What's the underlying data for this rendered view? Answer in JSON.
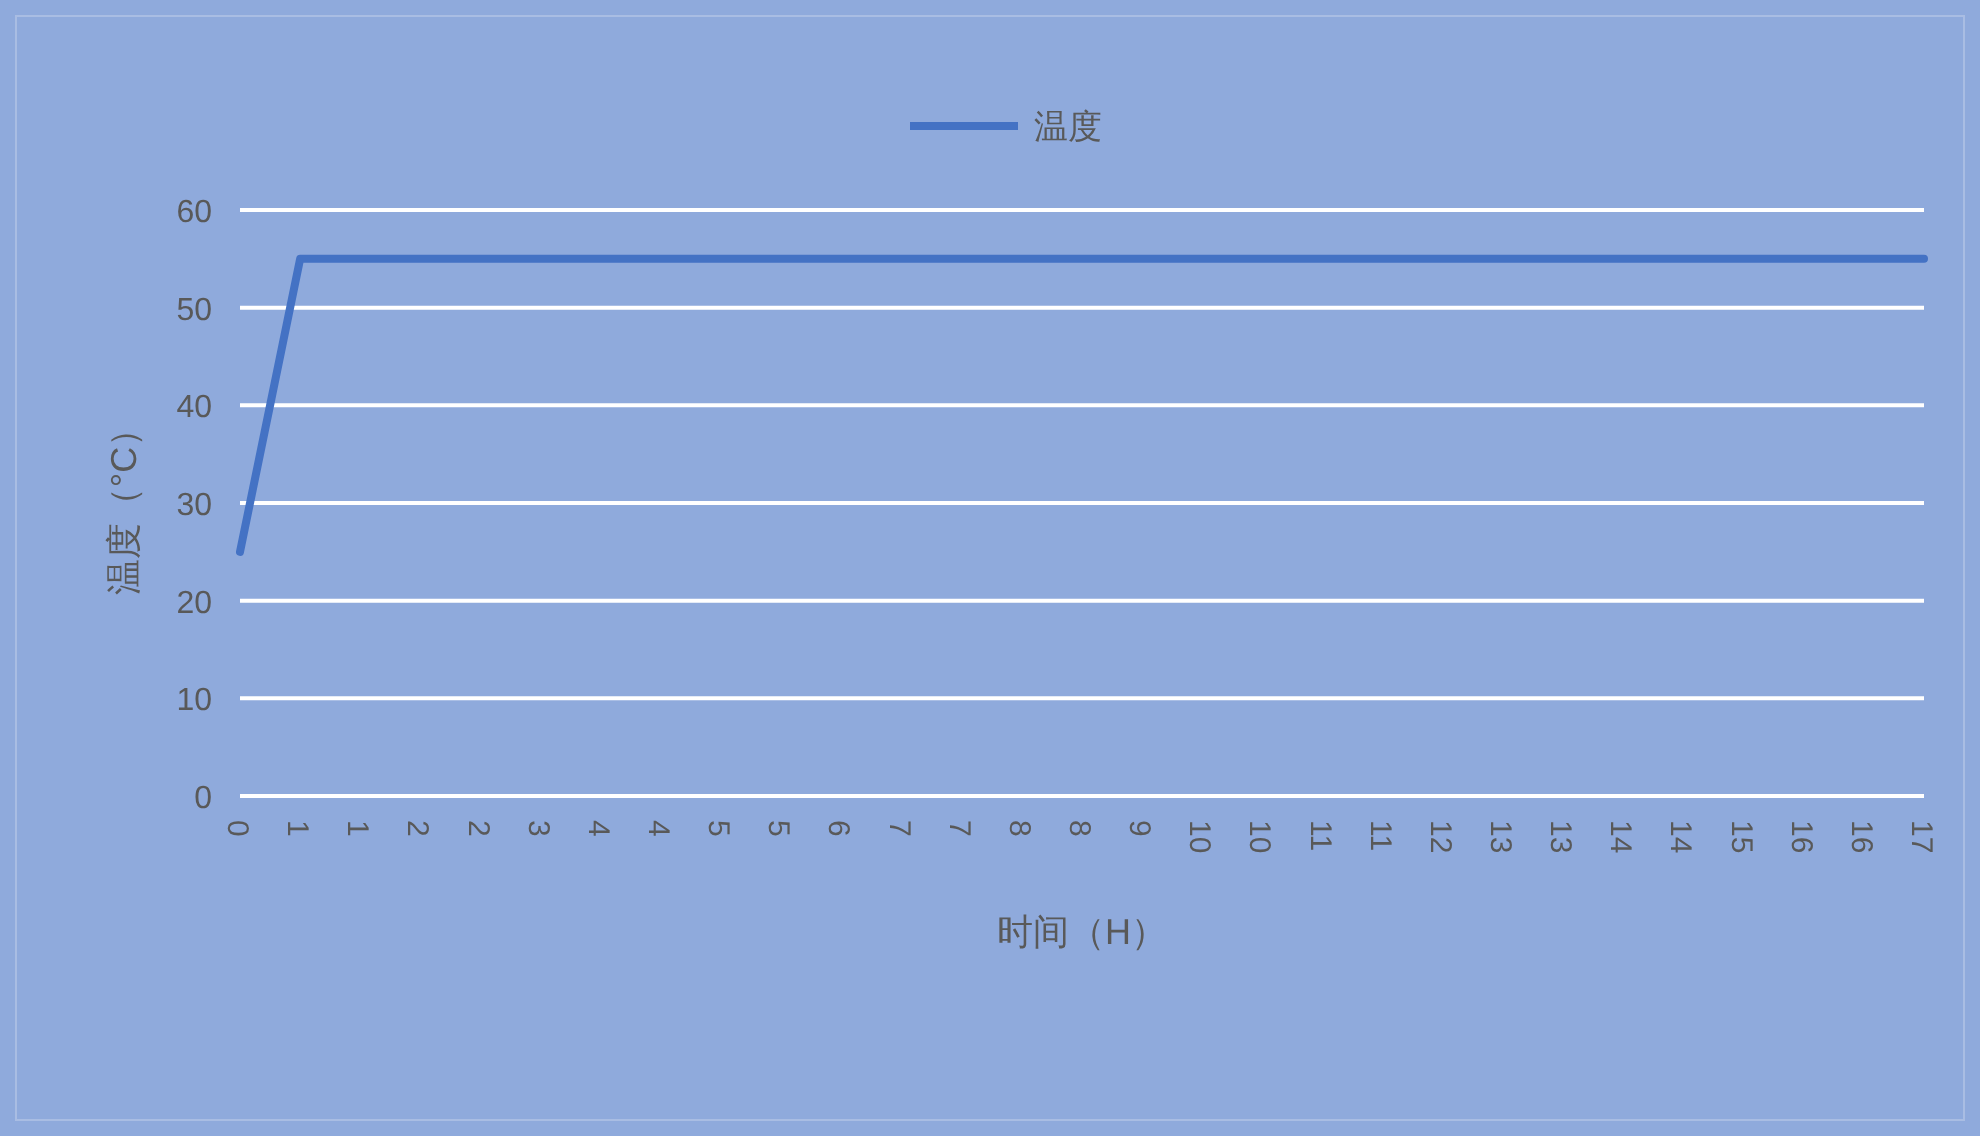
{
  "chart_data": {
    "type": "line",
    "xlabel": "时间（H）",
    "ylabel": "温度（°C）",
    "categories": [
      "0",
      "1",
      "1",
      "2",
      "2",
      "3",
      "4",
      "4",
      "5",
      "5",
      "6",
      "7",
      "7",
      "8",
      "8",
      "9",
      "10",
      "10",
      "11",
      "11",
      "12",
      "13",
      "13",
      "14",
      "14",
      "15",
      "16",
      "16",
      "17"
    ],
    "series": [
      {
        "name": "温度",
        "color": "#4472c4",
        "values": [
          25,
          55,
          55,
          55,
          55,
          55,
          55,
          55,
          55,
          55,
          55,
          55,
          55,
          55,
          55,
          55,
          55,
          55,
          55,
          55,
          55,
          55,
          55,
          55,
          55,
          55,
          55,
          55,
          55
        ]
      }
    ],
    "ylim": [
      0,
      60
    ],
    "yticks": [
      0,
      10,
      20,
      30,
      40,
      50,
      60
    ],
    "grid": "y",
    "legend": "top",
    "line_style": "solid"
  }
}
